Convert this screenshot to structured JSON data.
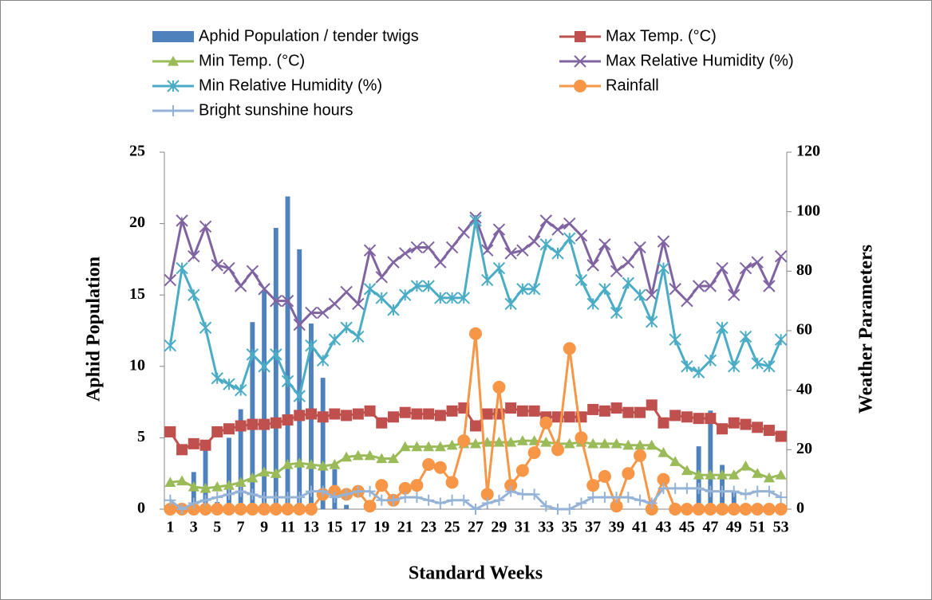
{
  "chart_data": {
    "type": "combo",
    "x_label": "Standard Weeks",
    "y_label": "Aphid Population",
    "y2_label": "Weather Parameters",
    "categories": [
      1,
      null,
      3,
      null,
      5,
      null,
      7,
      null,
      9,
      null,
      11,
      null,
      13,
      null,
      15,
      null,
      17,
      null,
      19,
      null,
      21,
      null,
      23,
      null,
      25,
      null,
      27,
      null,
      29,
      null,
      31,
      null,
      33,
      null,
      35,
      null,
      37,
      null,
      39,
      null,
      41,
      null,
      43,
      null,
      45,
      null,
      47,
      null,
      49,
      null,
      51,
      null,
      53
    ],
    "ylim": [
      0,
      25
    ],
    "yticks": [
      0,
      5,
      10,
      15,
      20,
      25
    ],
    "y2lim": [
      0,
      120
    ],
    "y2ticks": [
      0,
      20,
      40,
      60,
      80,
      100,
      120
    ],
    "series": [
      {
        "name": "Aphid Population / tender twigs",
        "type": "bar",
        "axis": "y",
        "color": "#4f81bd",
        "values": [
          0,
          0,
          2.6,
          4.8,
          0.5,
          5.0,
          7.0,
          13.1,
          15.3,
          19.7,
          21.9,
          18.2,
          13.0,
          9.2,
          2.8,
          0.3,
          0,
          0,
          0,
          0,
          0,
          0,
          0,
          0,
          0,
          0,
          0,
          0,
          0,
          0,
          0,
          0,
          0,
          0,
          0,
          0,
          0,
          0,
          0,
          0,
          0,
          0,
          0,
          0,
          0,
          4.4,
          6.9,
          3.1,
          1.2,
          0,
          0,
          0,
          0
        ]
      },
      {
        "name": "Max Temp. (°C)",
        "type": "line",
        "axis": "y2",
        "color": "#c0504d",
        "marker": "square",
        "values": [
          26,
          20,
          22,
          21.5,
          26,
          27,
          28,
          28.5,
          28.5,
          29,
          30,
          31.5,
          32,
          31,
          32,
          31.5,
          32,
          33,
          29,
          31,
          32.5,
          32,
          32,
          31.5,
          33,
          34,
          28,
          32,
          32,
          34,
          33,
          33,
          31,
          31,
          31,
          31,
          33.5,
          33,
          34,
          32.5,
          32.5,
          35,
          29,
          31.5,
          31,
          30.5,
          30.5,
          27,
          29,
          28.5,
          27.5,
          26.5,
          24.5
        ]
      },
      {
        "name": "Min Temp. (°C)",
        "type": "line",
        "axis": "y2",
        "color": "#9bbb59",
        "marker": "triangle",
        "values": [
          9,
          9.5,
          7.5,
          7,
          7.5,
          8,
          9,
          10.5,
          12.5,
          12,
          15,
          15.5,
          15,
          14.5,
          15,
          17.5,
          18,
          18,
          17,
          17,
          21,
          21,
          21,
          21,
          21.5,
          22,
          22,
          22.5,
          22.5,
          22.5,
          23,
          23,
          22.5,
          22,
          22,
          22.5,
          22,
          22,
          22,
          21.5,
          21.5,
          21.5,
          19,
          16,
          13,
          11.5,
          11.5,
          11.5,
          11.5,
          14.5,
          12,
          10.5,
          11.5
        ]
      },
      {
        "name": "Max Relative Humidity (%)",
        "type": "line",
        "axis": "y2",
        "color": "#8064a2",
        "marker": "x",
        "values": [
          77,
          97,
          85,
          95,
          82,
          81,
          75,
          80,
          74,
          70,
          70,
          62,
          66,
          66,
          69,
          73,
          69,
          87,
          78,
          83,
          86,
          88,
          88,
          83,
          88,
          93,
          98,
          87,
          94,
          86,
          87,
          90,
          97,
          94,
          96,
          92,
          82,
          89,
          80,
          83,
          88,
          72,
          90,
          74,
          70,
          75,
          75,
          81,
          72,
          81,
          83,
          75,
          85
        ]
      },
      {
        "name": "Min Relative Humidity (%)",
        "type": "line",
        "axis": "y2",
        "color": "#4bacc6",
        "marker": "asterisk",
        "values": [
          55,
          81,
          72,
          61,
          44,
          42,
          40,
          52,
          48,
          52,
          43,
          38,
          55,
          50,
          57,
          61,
          58,
          74,
          71,
          67,
          72,
          75,
          75,
          71,
          71,
          71,
          97,
          77,
          81,
          69,
          74,
          74,
          89,
          86,
          91,
          77,
          69,
          74,
          66,
          76,
          72,
          63,
          81,
          57,
          48,
          46,
          50,
          61,
          48,
          58,
          49,
          48,
          57
        ]
      },
      {
        "name": "Rainfall",
        "type": "line",
        "axis": "y2",
        "color": "#f79646",
        "marker": "circle",
        "values": [
          0,
          0,
          0,
          0,
          0,
          0,
          0,
          0,
          0,
          0,
          0,
          0,
          0,
          5,
          6,
          5,
          6,
          1,
          8,
          3,
          7,
          8,
          15,
          14,
          9,
          23,
          59,
          5,
          41,
          8,
          13,
          19,
          29,
          20,
          54,
          24,
          8,
          11,
          1,
          12,
          18,
          0,
          10,
          0,
          0,
          0,
          0,
          0,
          0,
          0,
          0,
          0,
          0
        ]
      },
      {
        "name": "Bright sunshine hours",
        "type": "line",
        "axis": "y2",
        "color": "#95b3d7",
        "marker": "plus",
        "values": [
          3,
          0,
          2,
          3,
          4,
          5,
          6,
          5,
          4,
          4,
          4,
          4,
          6,
          6,
          4,
          5,
          6,
          6,
          3,
          3,
          4,
          4,
          3,
          2,
          3,
          3,
          0,
          2,
          3,
          6,
          5,
          5,
          1,
          0,
          0,
          2,
          4,
          4,
          4,
          4,
          3,
          2,
          7,
          7,
          7,
          7,
          6,
          6,
          6,
          5,
          6,
          6,
          4
        ]
      }
    ]
  }
}
